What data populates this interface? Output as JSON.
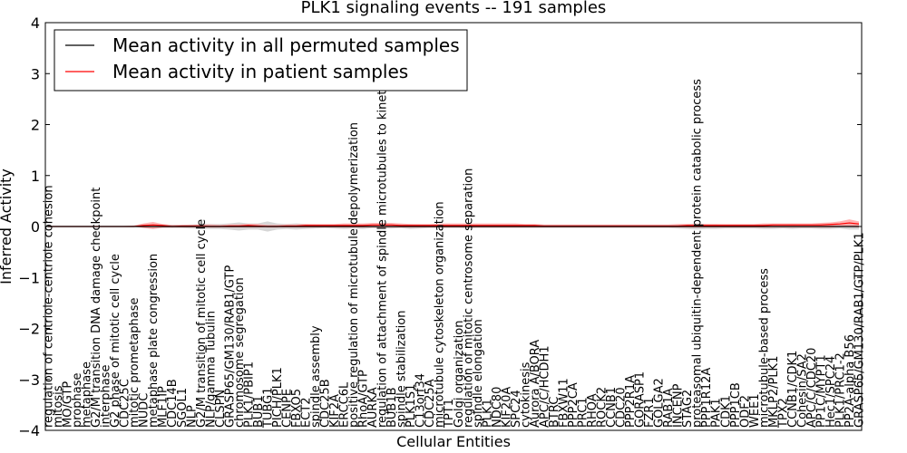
{
  "chart_data": {
    "type": "line",
    "title": "PLK1 signaling events -- 191 samples",
    "xlabel": "Cellular Entities",
    "ylabel": "Inferred Activity",
    "ylim": [
      -4,
      4
    ],
    "yticks": [
      "4",
      "3",
      "2",
      "1",
      "0",
      "−1",
      "−2",
      "−3",
      "−4"
    ],
    "legend": {
      "placement": "top-left",
      "entries": [
        {
          "label": "Mean activity in all permuted samples",
          "color": "#000000"
        },
        {
          "label": "Mean activity in patient samples",
          "color": "#ff0000"
        }
      ]
    },
    "categories": [
      "regulation of centriole-centriole cohesion",
      "mitosis",
      "MO/GTP",
      "prophase",
      "metaphase",
      "G2/M transition DNA damage checkpoint",
      "interphase",
      "G2 phase of mitotic cell cycle",
      "CDC25C",
      "mitotic prometaphase",
      "NUDC",
      "metaphase plate congression",
      "MLF1IP",
      "CDC14B",
      "SGOL1",
      "NLP",
      "G2/M transition of mitotic cell cycle",
      "NLP/gamma Tubulin",
      "CLSPN",
      "GRASP65/GM130/RAB1/GTP",
      "chromosome segregation",
      "PLK1/PBIP1",
      "BUB1",
      "TUBG1",
      "PICH/PLK1",
      "CENPE",
      "FBXO5",
      "ECT2",
      "spindle assembly",
      "CDC25B",
      "KIF2A",
      "ERCC6L",
      "positive regulation of microtubule depolymerization",
      "RhoA/GTP",
      "AURKA",
      "regulation of attachment of spindle microtubules to kinetochore",
      "BUB1B",
      "spindle stabilization",
      "PLK1S1",
      "C13orf34",
      "CDC25A",
      "microtubule cytoskeleton organization",
      "TPT1",
      "Golgi organization",
      "regulation of mitotic centrosome separation",
      "spindle elongation",
      "PLK1",
      "NDC80",
      "KIF20A",
      "SPC24",
      "cytokinesis",
      "Aurora A/BORA",
      "APC/C/HCDH1",
      "BTRC",
      "FBXW11",
      "PPP2CA",
      "PRC1",
      "RHOA",
      "ROCK2",
      "CCNB1",
      "CDC20",
      "PPP2R1A",
      "GORASP1",
      "FZR1",
      "GOLGA2",
      "RAB1A",
      "INCENP",
      "STAG2",
      "proteasomal ubiquitin-dependent protein catabolic process",
      "PPP1R12A",
      "PAK1",
      "CDK1",
      "PPP1CB",
      "ODF2",
      "WEE1",
      "microtubule-based process",
      "MKLP2/PLK1",
      "TPX2",
      "CCNB1/CDK1",
      "Cohesin/SA2",
      "APC/C/CDC20",
      "PP1C/MYPT1",
      "Hec1/SPC24",
      "PLK1/PRC1-2",
      "PP2A-alpha B56",
      "GRASP65/GM130/RAB1/GTP/PLK1"
    ],
    "series": [
      {
        "name": "Mean activity in all permuted samples",
        "color": "#000000",
        "values": [
          0,
          0,
          0,
          0,
          0,
          0,
          0,
          0,
          0,
          0,
          0,
          0,
          0,
          0,
          0,
          0,
          0,
          0,
          0,
          0,
          0,
          0,
          0,
          0,
          0,
          0,
          0,
          0,
          0,
          0,
          0,
          0,
          0,
          0,
          0,
          0,
          0,
          0,
          0,
          0,
          0,
          0,
          0,
          0,
          0,
          0,
          0,
          0,
          0,
          0,
          0,
          0,
          0,
          0,
          0,
          0,
          0,
          0,
          0,
          0,
          0,
          0,
          0,
          0,
          0,
          0,
          0,
          0,
          0,
          0,
          0,
          0,
          0,
          0,
          0,
          0,
          0,
          0,
          0,
          0,
          0,
          0,
          0,
          0,
          0,
          0
        ]
      },
      {
        "name": "Mean activity in patient samples",
        "color": "#ff0000",
        "values": [
          0.0,
          0.0,
          0.0,
          0.0,
          0.0,
          0.0,
          0.0,
          0.0,
          0.0,
          0.0,
          0.02,
          0.03,
          0.02,
          0.0,
          0.01,
          0.01,
          0.01,
          0.0,
          0.0,
          0.01,
          0.01,
          0.02,
          0.01,
          0.0,
          0.0,
          0.01,
          0.01,
          0.02,
          0.02,
          0.02,
          0.02,
          0.02,
          0.02,
          0.02,
          0.03,
          0.03,
          0.03,
          0.02,
          0.02,
          0.02,
          0.02,
          0.02,
          0.02,
          0.02,
          0.02,
          0.02,
          0.02,
          0.02,
          0.02,
          0.02,
          0.02,
          0.02,
          0.01,
          0.01,
          0.01,
          0.01,
          0.01,
          0.01,
          0.01,
          0.01,
          0.01,
          0.01,
          0.01,
          0.01,
          0.01,
          0.01,
          0.01,
          0.02,
          0.02,
          0.02,
          0.02,
          0.02,
          0.02,
          0.02,
          0.02,
          0.02,
          0.03,
          0.03,
          0.03,
          0.03,
          0.03,
          0.03,
          0.04,
          0.05,
          0.07,
          0.05
        ]
      }
    ],
    "bands": [
      {
        "name": "patient-range",
        "color": "#ff9999",
        "lower": [
          0,
          0,
          0,
          0,
          0,
          0,
          0,
          0,
          0,
          0,
          -0.03,
          -0.05,
          -0.02,
          -0.02,
          -0.02,
          -0.02,
          -0.02,
          -0.02,
          -0.02,
          -0.02,
          -0.02,
          -0.02,
          -0.02,
          -0.02,
          -0.02,
          -0.02,
          -0.02,
          -0.02,
          -0.02,
          -0.02,
          -0.02,
          -0.02,
          -0.02,
          -0.02,
          -0.02,
          -0.02,
          -0.02,
          -0.02,
          -0.02,
          -0.02,
          -0.02,
          -0.02,
          -0.02,
          -0.02,
          -0.02,
          -0.02,
          -0.02,
          -0.02,
          -0.02,
          -0.02,
          -0.02,
          -0.02,
          -0.02,
          -0.02,
          -0.02,
          -0.02,
          -0.02,
          -0.02,
          -0.02,
          -0.02,
          -0.02,
          -0.02,
          -0.02,
          -0.02,
          -0.02,
          -0.02,
          -0.02,
          -0.02,
          -0.02,
          -0.02,
          -0.02,
          -0.02,
          -0.02,
          -0.02,
          -0.02,
          -0.02,
          -0.02,
          -0.02,
          -0.02,
          -0.02,
          -0.02,
          -0.02,
          -0.02,
          -0.01,
          -0.01,
          -0.02
        ],
        "upper": [
          0.01,
          0.01,
          0.01,
          0.01,
          0.01,
          0.01,
          0.01,
          0.01,
          0.01,
          0.02,
          0.06,
          0.09,
          0.05,
          0.03,
          0.03,
          0.03,
          0.04,
          0.04,
          0.03,
          0.04,
          0.04,
          0.05,
          0.05,
          0.03,
          0.03,
          0.04,
          0.04,
          0.05,
          0.05,
          0.05,
          0.05,
          0.06,
          0.06,
          0.06,
          0.07,
          0.07,
          0.07,
          0.06,
          0.05,
          0.05,
          0.05,
          0.06,
          0.06,
          0.06,
          0.06,
          0.06,
          0.06,
          0.06,
          0.06,
          0.06,
          0.05,
          0.05,
          0.04,
          0.04,
          0.04,
          0.04,
          0.04,
          0.04,
          0.04,
          0.04,
          0.04,
          0.04,
          0.04,
          0.04,
          0.04,
          0.04,
          0.05,
          0.05,
          0.05,
          0.05,
          0.05,
          0.05,
          0.05,
          0.05,
          0.05,
          0.06,
          0.06,
          0.06,
          0.06,
          0.06,
          0.06,
          0.07,
          0.08,
          0.1,
          0.14,
          0.1
        ]
      },
      {
        "name": "permuted-range",
        "color": "#c8c8c8",
        "lower": [
          0,
          0,
          0,
          0,
          0,
          0,
          0,
          0,
          -0.01,
          -0.01,
          -0.02,
          -0.05,
          -0.03,
          -0.03,
          -0.03,
          -0.04,
          -0.05,
          -0.05,
          -0.05,
          -0.06,
          -0.08,
          -0.06,
          -0.06,
          -0.1,
          -0.06,
          -0.05,
          -0.06,
          -0.05,
          -0.04,
          -0.03,
          -0.04,
          -0.05,
          -0.04,
          -0.05,
          -0.03,
          -0.04,
          -0.04,
          -0.03,
          -0.05,
          -0.04,
          -0.03,
          -0.03,
          -0.03,
          -0.03,
          -0.04,
          -0.03,
          -0.03,
          -0.03,
          -0.03,
          -0.03,
          -0.03,
          -0.03,
          -0.03,
          -0.03,
          -0.03,
          -0.03,
          -0.03,
          -0.03,
          -0.03,
          -0.03,
          -0.03,
          -0.03,
          -0.03,
          -0.03,
          -0.03,
          -0.03,
          -0.04,
          -0.05,
          -0.06,
          -0.05,
          -0.05,
          -0.04,
          -0.04,
          -0.04,
          -0.04,
          -0.05,
          -0.05,
          -0.04,
          -0.05,
          -0.04,
          -0.04,
          -0.05,
          -0.05,
          -0.04,
          -0.06,
          -0.06
        ],
        "upper": [
          0,
          0,
          0,
          0,
          0,
          0,
          0,
          0,
          0.01,
          0.01,
          0.02,
          0.05,
          0.03,
          0.03,
          0.03,
          0.04,
          0.05,
          0.05,
          0.05,
          0.06,
          0.08,
          0.06,
          0.06,
          0.1,
          0.06,
          0.05,
          0.06,
          0.05,
          0.04,
          0.03,
          0.04,
          0.05,
          0.04,
          0.05,
          0.03,
          0.04,
          0.04,
          0.03,
          0.05,
          0.04,
          0.03,
          0.03,
          0.03,
          0.03,
          0.04,
          0.03,
          0.03,
          0.03,
          0.03,
          0.03,
          0.03,
          0.03,
          0.03,
          0.03,
          0.03,
          0.03,
          0.03,
          0.03,
          0.03,
          0.03,
          0.03,
          0.03,
          0.03,
          0.03,
          0.03,
          0.03,
          0.04,
          0.05,
          0.06,
          0.05,
          0.05,
          0.04,
          0.04,
          0.04,
          0.04,
          0.05,
          0.05,
          0.04,
          0.05,
          0.04,
          0.04,
          0.05,
          0.05,
          0.04,
          0.06,
          0.06
        ]
      }
    ]
  }
}
